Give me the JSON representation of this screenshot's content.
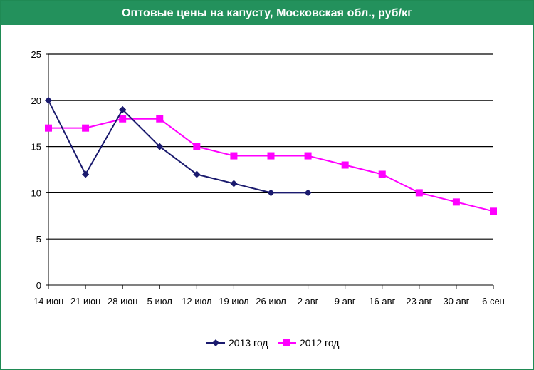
{
  "chart_data": {
    "type": "line",
    "title": "Оптовые цены на капусту, Московская обл., руб/кг",
    "categories": [
      "14 июн",
      "21 июн",
      "28 июн",
      "5 июл",
      "12 июл",
      "19 июл",
      "26 июл",
      "2 авг",
      "9 авг",
      "16 авг",
      "23 авг",
      "30 авг",
      "6 сен"
    ],
    "ylim": [
      0,
      25
    ],
    "yticks": [
      0,
      5,
      10,
      15,
      20,
      25
    ],
    "grid": true,
    "legend_position": "bottom",
    "series": [
      {
        "name": "2013 год",
        "color": "#1a1a6e",
        "marker": "diamond",
        "values": [
          20,
          12,
          19,
          15,
          12,
          11,
          10,
          10,
          null,
          null,
          null,
          null,
          null
        ]
      },
      {
        "name": "2012 год",
        "color": "#ff00ff",
        "marker": "square",
        "values": [
          17,
          17,
          18,
          18,
          15,
          14,
          14,
          14,
          13,
          12,
          10,
          9,
          8
        ]
      }
    ]
  }
}
